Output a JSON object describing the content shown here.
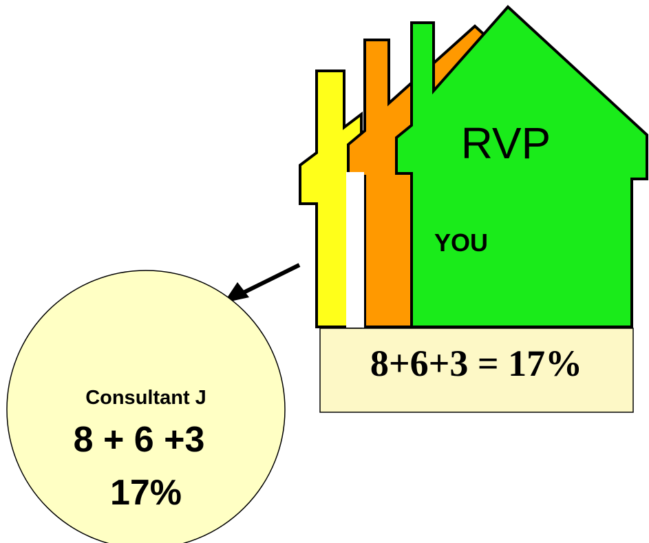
{
  "house": {
    "label": "RVP",
    "sublabel": "YOU"
  },
  "box": {
    "text": "8+6+3 = 17%"
  },
  "circle": {
    "title": "Consultant J",
    "formula": "8 + 6 +3",
    "total": "17%"
  }
}
